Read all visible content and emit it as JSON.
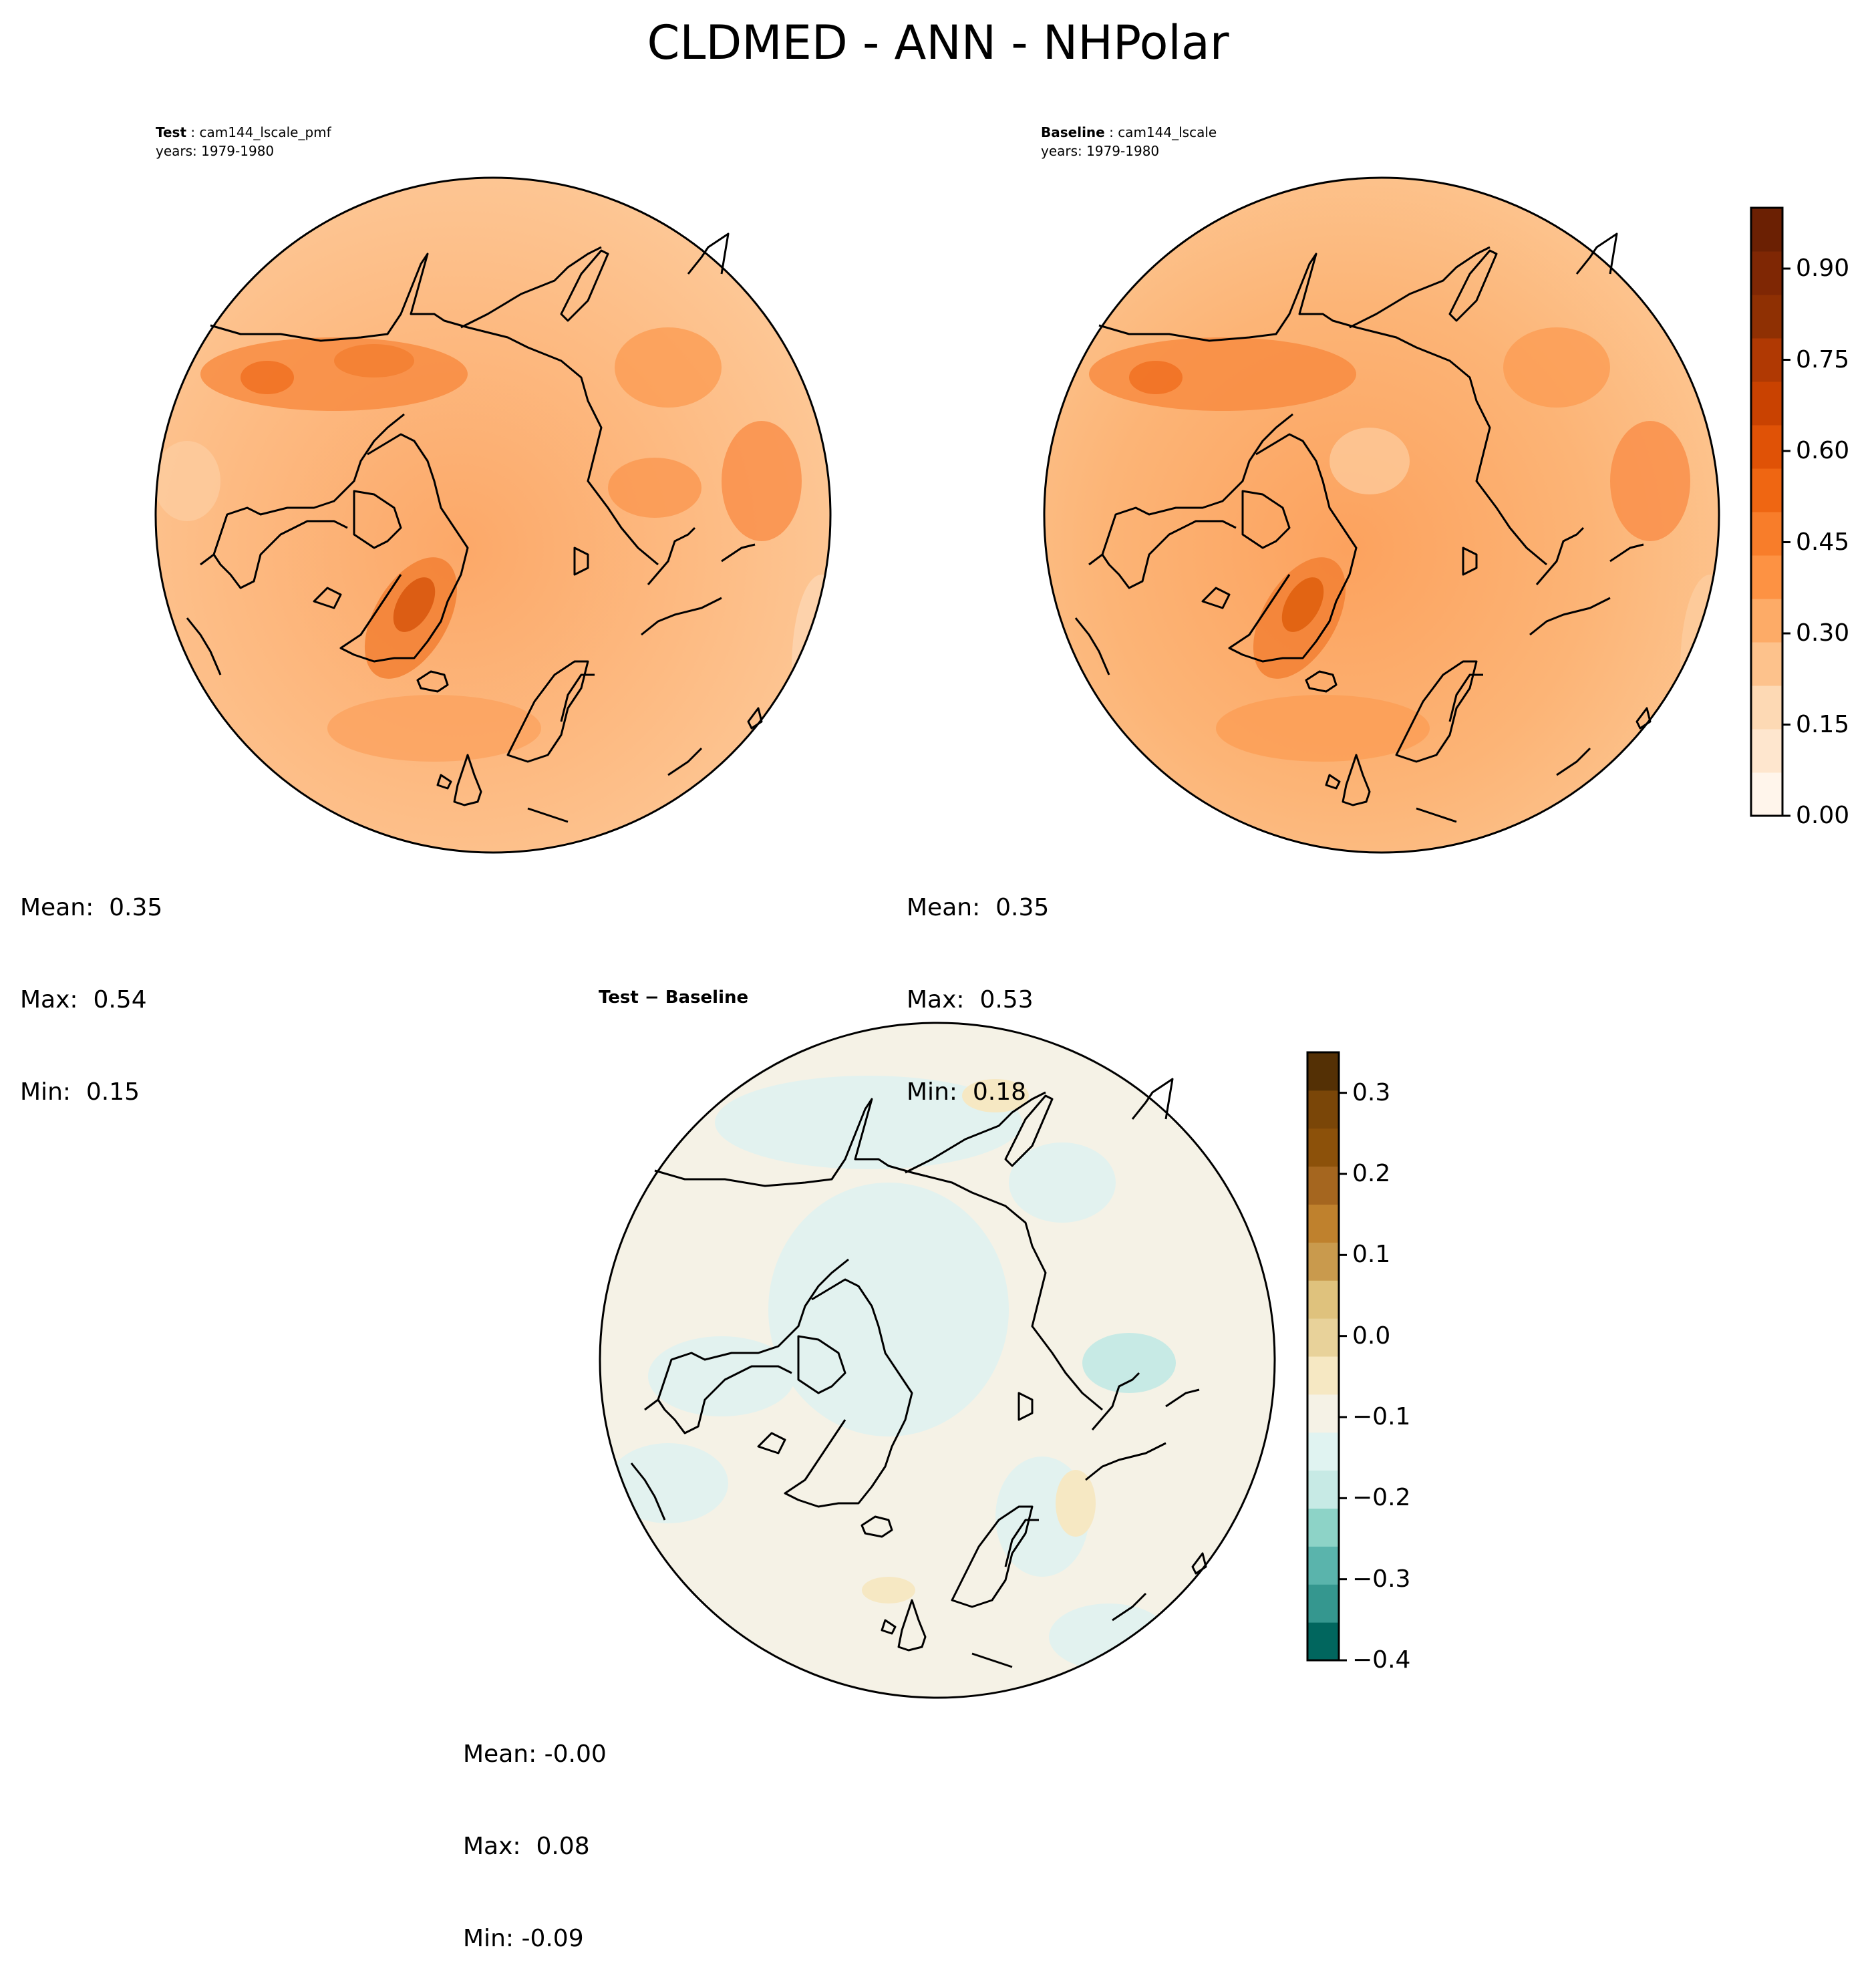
{
  "title": "CLDMED - ANN - NHPolar",
  "panels": {
    "test": {
      "label_bold": "Test",
      "label_name": "cam144_lscale_pmf",
      "years": "years: 1979-1980",
      "mean": "Mean:  0.35",
      "max": "Max:  0.54",
      "min": "Min:  0.15"
    },
    "baseline": {
      "label_bold": "Baseline",
      "label_name": "cam144_lscale",
      "years": "years: 1979-1980",
      "mean": "Mean:  0.35",
      "max": "Max:  0.53",
      "min": "Min:  0.18"
    },
    "diff": {
      "label": "Test − Baseline",
      "mean": "Mean: -0.00",
      "max": "Max:  0.08",
      "min": "Min: -0.09"
    }
  },
  "colorbars": {
    "main": {
      "range": [
        0,
        1.0
      ],
      "ticks": [
        "0.00",
        "0.15",
        "0.30",
        "0.45",
        "0.60",
        "0.75",
        "0.90"
      ],
      "tick_values": [
        0,
        0.15,
        0.3,
        0.45,
        0.6,
        0.75,
        0.9
      ],
      "colors": [
        "#fff5eb",
        "#fee6ce",
        "#fdd9b4",
        "#fdc28c",
        "#fdab67",
        "#fd9243",
        "#f87d2a",
        "#ef6612",
        "#e05206",
        "#c94201",
        "#b03903",
        "#8f3003",
        "#7f2704",
        "#6b2003"
      ]
    },
    "diff": {
      "range": [
        -0.4,
        0.35
      ],
      "ticks": [
        "0.3",
        "0.2",
        "0.1",
        "0.0",
        "−0.1",
        "−0.2",
        "−0.3",
        "−0.4"
      ],
      "tick_values": [
        0.3,
        0.2,
        0.1,
        0.0,
        -0.1,
        -0.2,
        -0.3,
        -0.4
      ],
      "colors": [
        "#01665e",
        "#35978f",
        "#5ab4ac",
        "#8dd3c7",
        "#c7eae5",
        "#e0f3f1",
        "#f5f2e6",
        "#f6e8c3",
        "#e8d29a",
        "#dfc27d",
        "#c99a4d",
        "#bf812d",
        "#a5661f",
        "#8c510a",
        "#7a4608",
        "#543005"
      ]
    }
  }
}
